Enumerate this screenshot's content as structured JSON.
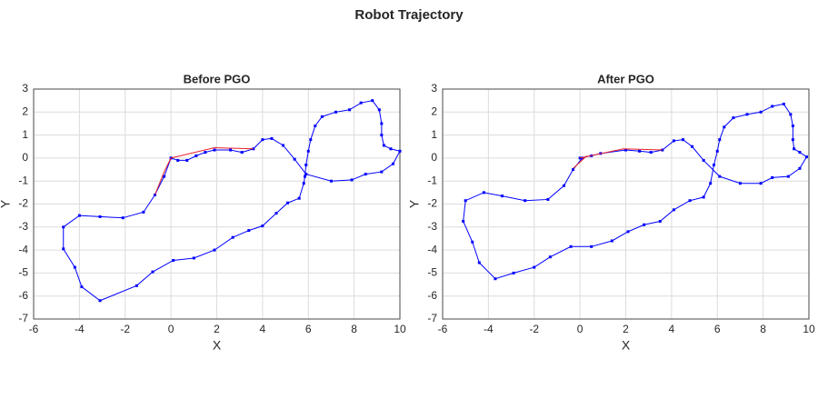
{
  "title": "Robot Trajectory",
  "chart_data": [
    {
      "type": "line",
      "title": "Before PGO",
      "xlabel": "X",
      "ylabel": "Y",
      "xlim": [
        -6,
        10
      ],
      "ylim": [
        -7,
        3
      ],
      "xticks": [
        -6,
        -4,
        -2,
        0,
        2,
        4,
        6,
        8,
        10
      ],
      "yticks": [
        -7,
        -6,
        -5,
        -4,
        -3,
        -2,
        -1,
        0,
        1,
        2,
        3
      ],
      "grid": true,
      "series": [
        {
          "color": "#0000ff",
          "marker": true,
          "x": [
            0,
            0.3,
            0.7,
            1.1,
            1.5,
            1.9,
            2.6,
            3.1,
            3.6,
            4.0,
            4.4,
            4.9,
            5.4,
            5.9,
            7.0,
            7.9,
            8.5,
            9.2,
            9.7,
            10,
            9.6,
            9.3,
            9.2,
            9.2,
            9.1,
            8.8,
            8.3,
            7.8,
            7.2,
            6.6,
            6.3,
            6.1,
            6.0,
            5.9,
            5.85,
            5.8,
            5.6,
            5.1,
            4.6,
            4.0,
            3.4,
            2.7,
            1.9,
            1.0,
            0.1,
            -0.8,
            -1.5,
            -3.1,
            -3.9,
            -4.2,
            -4.7,
            -4.7,
            -4.0,
            -3.1,
            -2.1,
            -1.2,
            -0.7,
            -0.3,
            0
          ],
          "values": [
            0,
            -0.1,
            -0.1,
            0.1,
            0.25,
            0.35,
            0.35,
            0.25,
            0.4,
            0.8,
            0.85,
            0.55,
            -0.05,
            -0.7,
            -1.0,
            -0.95,
            -0.7,
            -0.6,
            -0.25,
            0.3,
            0.4,
            0.55,
            1.0,
            1.5,
            2.1,
            2.5,
            2.4,
            2.1,
            2.0,
            1.8,
            1.4,
            0.8,
            0.3,
            -0.3,
            -0.8,
            -1.1,
            -1.75,
            -1.95,
            -2.4,
            -2.95,
            -3.15,
            -3.45,
            -4.0,
            -4.35,
            -4.45,
            -4.95,
            -5.55,
            -6.2,
            -5.6,
            -4.75,
            -3.95,
            -3.0,
            -2.5,
            -2.55,
            -2.6,
            -2.35,
            -1.6,
            -0.8,
            0
          ]
        },
        {
          "color": "#e8202a",
          "marker": false,
          "x": [
            -0.7,
            -0.3,
            0,
            null,
            0,
            1.9,
            3.6
          ],
          "values": [
            -1.6,
            -0.6,
            0,
            null,
            0,
            0.45,
            0.4
          ]
        }
      ]
    },
    {
      "type": "line",
      "title": "After PGO",
      "xlabel": "X",
      "ylabel": "Y",
      "xlim": [
        -6,
        10
      ],
      "ylim": [
        -7,
        3
      ],
      "xticks": [
        -6,
        -4,
        -2,
        0,
        2,
        4,
        6,
        8,
        10
      ],
      "yticks": [
        -7,
        -6,
        -5,
        -4,
        -3,
        -2,
        -1,
        0,
        1,
        2,
        3
      ],
      "grid": true,
      "series": [
        {
          "color": "#0000ff",
          "marker": true,
          "x": [
            0,
            0.5,
            0.9,
            2.0,
            2.6,
            3.1,
            3.6,
            4.1,
            4.5,
            4.9,
            5.4,
            6.1,
            7.0,
            7.9,
            8.4,
            9.1,
            9.6,
            9.9,
            9.6,
            9.35,
            9.3,
            9.3,
            9.2,
            8.9,
            8.4,
            7.9,
            7.3,
            6.7,
            6.3,
            6.1,
            6.0,
            5.85,
            5.7,
            5.4,
            4.8,
            4.1,
            3.5,
            2.8,
            2.1,
            1.4,
            0.5,
            -0.4,
            -1.3,
            -2.0,
            -2.9,
            -3.7,
            -4.4,
            -4.7,
            -5.1,
            -5.0,
            -4.2,
            -3.4,
            -2.4,
            -1.4,
            -0.7,
            -0.3,
            0.1
          ],
          "values": [
            0,
            0.1,
            0.2,
            0.35,
            0.3,
            0.25,
            0.35,
            0.75,
            0.8,
            0.5,
            -0.1,
            -0.8,
            -1.1,
            -1.1,
            -0.85,
            -0.8,
            -0.45,
            0.05,
            0.25,
            0.4,
            0.8,
            1.4,
            1.9,
            2.35,
            2.25,
            2.0,
            1.9,
            1.75,
            1.35,
            0.8,
            0.3,
            -0.3,
            -1.1,
            -1.7,
            -1.85,
            -2.25,
            -2.75,
            -2.9,
            -3.2,
            -3.6,
            -3.85,
            -3.85,
            -4.3,
            -4.75,
            -5.0,
            -5.25,
            -4.55,
            -3.65,
            -2.75,
            -1.85,
            -1.5,
            -1.65,
            -1.85,
            -1.8,
            -1.2,
            -0.5,
            0
          ]
        },
        {
          "color": "#e8202a",
          "marker": false,
          "x": [
            -0.3,
            0.3,
            null,
            0,
            1.9,
            3.6
          ],
          "values": [
            -0.45,
            0.1,
            null,
            0,
            0.4,
            0.35
          ]
        }
      ]
    }
  ]
}
